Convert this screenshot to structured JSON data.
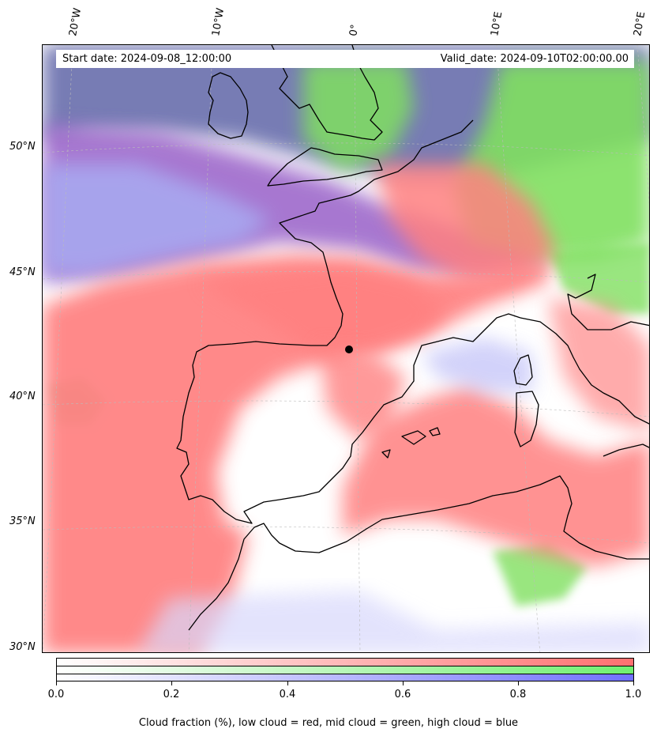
{
  "header": {
    "start_date": "Start date: 2024-09-08_12:00:00",
    "valid_date": "Valid_date: 2024-09-10T02:00:00.00"
  },
  "longitude_labels": [
    "20°W",
    "10°W",
    "0°",
    "10°E",
    "20°E"
  ],
  "latitude_labels": [
    "50°N",
    "45°N",
    "40°N",
    "35°N",
    "30°N"
  ],
  "colorbar": {
    "ticks": [
      "0.0",
      "0.2",
      "0.4",
      "0.6",
      "0.8",
      "1.0"
    ],
    "caption": "Cloud fraction (%), low cloud = red, mid cloud = green, high cloud = blue",
    "colors": {
      "low": "#ff7070",
      "mid": "#70f070",
      "high": "#7070ff"
    }
  },
  "map": {
    "marker": "black dot near 42°N, 1°E",
    "colors": {
      "coast": "#000000",
      "low_cloud": "#ff8080",
      "mid_cloud": "#80e060",
      "high_cloud": "#8a70d0"
    }
  }
}
